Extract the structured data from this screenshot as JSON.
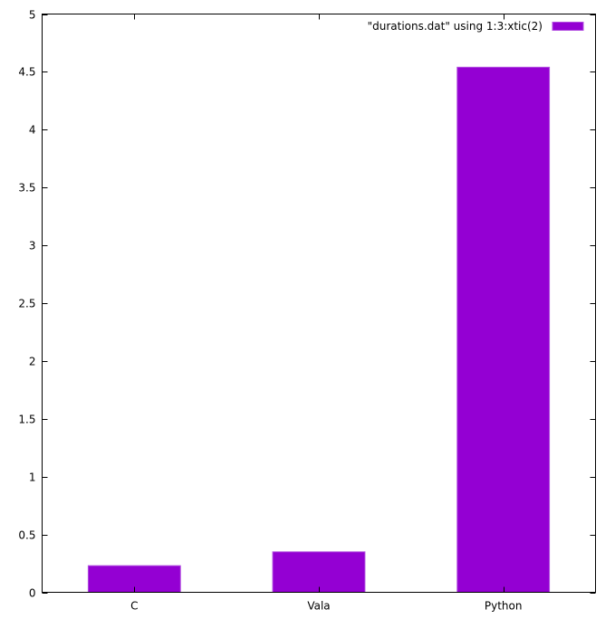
{
  "chart_data": {
    "type": "bar",
    "categories": [
      "C",
      "Vala",
      "Python"
    ],
    "series": [
      {
        "name": "\"durations.dat\" using 1:3:xtic(2)",
        "values": [
          0.23,
          0.35,
          4.54
        ],
        "color": "#9400d3"
      }
    ],
    "y_ticks": [
      "0",
      "0.5",
      "1",
      "1.5",
      "2",
      "2.5",
      "3",
      "3.5",
      "4",
      "4.5",
      "5"
    ],
    "ylim": [
      0,
      5
    ],
    "grid": false,
    "legend_position": "top-right"
  }
}
